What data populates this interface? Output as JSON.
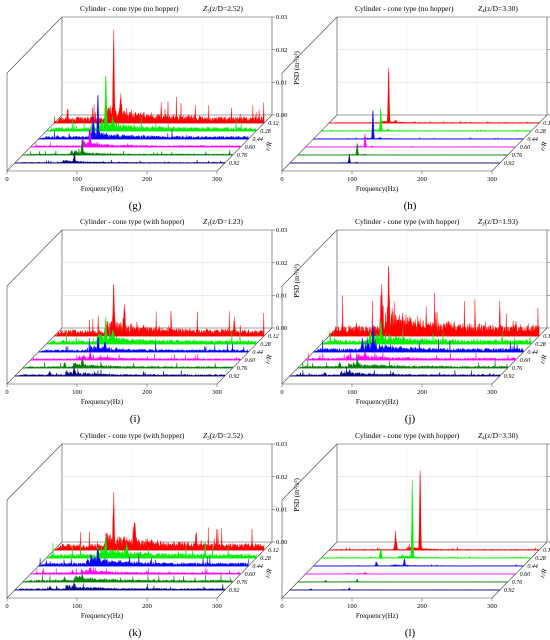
{
  "chart_data": [
    {
      "type": "area",
      "panel_label": "(g)",
      "title": "Cylinder - cone type (no hopper)",
      "z_label": "Z",
      "z_sub": "3",
      "z_ratio": "(z/D=2.52)",
      "xlabel": "Frequency(Hz)",
      "ylabel": "PSD (m²/s³)",
      "depth_label": "r/R",
      "x_ticks": [
        "0",
        "100",
        "200",
        "300"
      ],
      "xlim": [
        0,
        300
      ],
      "y_ticks": [
        "0.00",
        "0.01",
        "0.02",
        "0.03"
      ],
      "ylim": [
        0,
        0.03
      ],
      "depth_ticks": [
        "0.12",
        "0.28",
        "0.44",
        "0.60",
        "0.76",
        "0.92"
      ],
      "series": [
        {
          "name": "0.12",
          "color": "#ff0000",
          "peak_x": 85,
          "peak_y": 0.026,
          "floor": 0.0015,
          "decay": 60,
          "secondary_x": 95,
          "secondary_y": 0.006
        },
        {
          "name": "0.28",
          "color": "#00ee00",
          "peak_x": 85,
          "peak_y": 0.016,
          "floor": 0.0009,
          "decay": 45,
          "secondary_x": 95,
          "secondary_y": 0.003
        },
        {
          "name": "0.44",
          "color": "#0000ff",
          "peak_x": 85,
          "peak_y": 0.012,
          "floor": 0.0007,
          "decay": 40,
          "secondary_x": 78,
          "secondary_y": 0.005
        },
        {
          "name": "0.60",
          "color": "#ff00ff",
          "peak_x": 85,
          "peak_y": 0.006,
          "floor": 0.0004,
          "decay": 35,
          "secondary_x": 75,
          "secondary_y": 0.002
        },
        {
          "name": "0.76",
          "color": "#008000",
          "peak_x": 85,
          "peak_y": 0.004,
          "floor": 0.0003,
          "decay": 30,
          "secondary_x": 70,
          "secondary_y": 0.0015
        },
        {
          "name": "0.92",
          "color": "#000080",
          "peak_x": 85,
          "peak_y": 0.003,
          "floor": 0.0002,
          "decay": 30,
          "secondary_x": 70,
          "secondary_y": 0.001
        }
      ]
    },
    {
      "type": "area",
      "panel_label": "(h)",
      "title": "Cylinder - cone type (no hopper)",
      "z_label": "Z",
      "z_sub": "4",
      "z_ratio": "(z/D=3.30)",
      "xlabel": "Frequency(Hz)",
      "ylabel": "PSD (m²/s³)",
      "depth_label": "r/R",
      "x_ticks": [
        "0",
        "100",
        "200",
        "300"
      ],
      "xlim": [
        0,
        300
      ],
      "y_ticks": [
        "0.0",
        "0.05",
        "0.10",
        "0.15"
      ],
      "ylim": [
        0,
        0.15
      ],
      "depth_ticks": [
        "0.12",
        "0.28",
        "0.44",
        "0.60",
        "0.76",
        "0.92"
      ],
      "series": [
        {
          "name": "0.12",
          "color": "#ff0000",
          "peak_x": 85,
          "peak_y": 0.085,
          "floor": 0.0008,
          "decay": 25,
          "secondary_x": 95,
          "secondary_y": 0.004
        },
        {
          "name": "0.28",
          "color": "#00ee00",
          "peak_x": 85,
          "peak_y": 0.035,
          "floor": 0.0006,
          "decay": 20,
          "secondary_x": 95,
          "secondary_y": 0.002
        },
        {
          "name": "0.44",
          "color": "#0000ff",
          "peak_x": 85,
          "peak_y": 0.045,
          "floor": 0.0005,
          "decay": 20,
          "secondary_x": 95,
          "secondary_y": 0.002
        },
        {
          "name": "0.60",
          "color": "#ff00ff",
          "peak_x": 85,
          "peak_y": 0.02,
          "floor": 0.0004,
          "decay": 20,
          "secondary_x": 95,
          "secondary_y": 0.001
        },
        {
          "name": "0.76",
          "color": "#008000",
          "peak_x": 85,
          "peak_y": 0.018,
          "floor": 0.0003,
          "decay": 20,
          "secondary_x": 95,
          "secondary_y": 0.001
        },
        {
          "name": "0.92",
          "color": "#000080",
          "peak_x": 85,
          "peak_y": 0.012,
          "floor": 0.0002,
          "decay": 20,
          "secondary_x": 95,
          "secondary_y": 0.001
        }
      ]
    },
    {
      "type": "area",
      "panel_label": "(i)",
      "title": "Cylinder - cone type (with hopper)",
      "z_label": "Z",
      "z_sub": "1",
      "z_ratio": "(z/D=1.23)",
      "xlabel": "Frequency(Hz)",
      "ylabel": "PSD (m²/s³)",
      "depth_label": "r/R",
      "x_ticks": [
        "0",
        "100",
        "200",
        "300"
      ],
      "xlim": [
        0,
        300
      ],
      "y_ticks": [
        "0.00",
        "0.01",
        "0.02",
        "0.03"
      ],
      "ylim": [
        0,
        0.03
      ],
      "depth_ticks": [
        "0.12",
        "0.28",
        "0.44",
        "0.60",
        "0.76",
        "0.92"
      ],
      "series": [
        {
          "name": "0.12",
          "color": "#ff0000",
          "peak_x": 85,
          "peak_y": 0.014,
          "floor": 0.0015,
          "decay": 60,
          "secondary_x": 100,
          "secondary_y": 0.006
        },
        {
          "name": "0.28",
          "color": "#00ee00",
          "peak_x": 85,
          "peak_y": 0.006,
          "floor": 0.0009,
          "decay": 45,
          "secondary_x": 95,
          "secondary_y": 0.003
        },
        {
          "name": "0.44",
          "color": "#0000ff",
          "peak_x": 85,
          "peak_y": 0.004,
          "floor": 0.0006,
          "decay": 40,
          "secondary_x": 95,
          "secondary_y": 0.002
        },
        {
          "name": "0.60",
          "color": "#ff00ff",
          "peak_x": 85,
          "peak_y": 0.0015,
          "floor": 0.0004,
          "decay": 40,
          "secondary_x": 70,
          "secondary_y": 0.001
        },
        {
          "name": "0.76",
          "color": "#008000",
          "peak_x": 85,
          "peak_y": 0.002,
          "floor": 0.0004,
          "decay": 40,
          "secondary_x": 60,
          "secondary_y": 0.0015
        },
        {
          "name": "0.92",
          "color": "#000080",
          "peak_x": 85,
          "peak_y": 0.002,
          "floor": 0.0004,
          "decay": 40,
          "secondary_x": 50,
          "secondary_y": 0.0015
        }
      ]
    },
    {
      "type": "area",
      "panel_label": "(j)",
      "title": "Cylinder - cone type (with hopper)",
      "z_label": "Z",
      "z_sub": "2",
      "z_ratio": "(z/D=1.93)",
      "xlabel": "Frequency(Hz)",
      "ylabel": "PSD (m²/s³)",
      "depth_label": "r/R",
      "x_ticks": [
        "0",
        "100",
        "200",
        "300"
      ],
      "xlim": [
        0,
        300
      ],
      "y_ticks": [
        "0.00",
        "0.01",
        "0.02",
        "0.03"
      ],
      "ylim": [
        0,
        0.03
      ],
      "depth_ticks": [
        "0.12",
        "0.28",
        "0.44",
        "0.60",
        "0.76",
        "0.92"
      ],
      "series": [
        {
          "name": "0.12",
          "color": "#ff0000",
          "peak_x": 85,
          "peak_y": 0.016,
          "floor": 0.0025,
          "decay": 60,
          "secondary_x": 75,
          "secondary_y": 0.01
        },
        {
          "name": "0.28",
          "color": "#00ee00",
          "peak_x": 85,
          "peak_y": 0.006,
          "floor": 0.001,
          "decay": 45,
          "secondary_x": 70,
          "secondary_y": 0.004
        },
        {
          "name": "0.44",
          "color": "#0000ff",
          "peak_x": 85,
          "peak_y": 0.006,
          "floor": 0.0009,
          "decay": 40,
          "secondary_x": 70,
          "secondary_y": 0.004
        },
        {
          "name": "0.60",
          "color": "#ff00ff",
          "peak_x": 85,
          "peak_y": 0.0015,
          "floor": 0.0005,
          "decay": 40,
          "secondary_x": 60,
          "secondary_y": 0.001
        },
        {
          "name": "0.76",
          "color": "#008000",
          "peak_x": 85,
          "peak_y": 0.002,
          "floor": 0.0005,
          "decay": 40,
          "secondary_x": 60,
          "secondary_y": 0.0015
        },
        {
          "name": "0.92",
          "color": "#000080",
          "peak_x": 85,
          "peak_y": 0.0015,
          "floor": 0.0004,
          "decay": 40,
          "secondary_x": 50,
          "secondary_y": 0.001
        }
      ]
    },
    {
      "type": "area",
      "panel_label": "(k)",
      "title": "Cylinder - cone type (with hopper)",
      "z_label": "Z",
      "z_sub": "3",
      "z_ratio": "(z/D=2.52)",
      "xlabel": "Frequency(Hz)",
      "ylabel": "PSD (m²/s³)",
      "depth_label": "r/R",
      "x_ticks": [
        "0",
        "100",
        "200",
        "300"
      ],
      "xlim": [
        0,
        300
      ],
      "y_ticks": [
        "0.00",
        "0.01",
        "0.02",
        "0.03"
      ],
      "ylim": [
        0,
        0.03
      ],
      "depth_ticks": [
        "0.12",
        "0.28",
        "0.44",
        "0.60",
        "0.76",
        "0.92"
      ],
      "series": [
        {
          "name": "0.12",
          "color": "#ff0000",
          "peak_x": 85,
          "peak_y": 0.012,
          "floor": 0.0015,
          "decay": 60,
          "secondary_x": 115,
          "secondary_y": 0.007
        },
        {
          "name": "0.28",
          "color": "#00ee00",
          "peak_x": 85,
          "peak_y": 0.005,
          "floor": 0.001,
          "decay": 45,
          "secondary_x": 115,
          "secondary_y": 0.003
        },
        {
          "name": "0.44",
          "color": "#0000ff",
          "peak_x": 85,
          "peak_y": 0.004,
          "floor": 0.0008,
          "decay": 40,
          "secondary_x": 70,
          "secondary_y": 0.002
        },
        {
          "name": "0.60",
          "color": "#ff00ff",
          "peak_x": 85,
          "peak_y": 0.0015,
          "floor": 0.0004,
          "decay": 40,
          "secondary_x": 60,
          "secondary_y": 0.001
        },
        {
          "name": "0.76",
          "color": "#008000",
          "peak_x": 85,
          "peak_y": 0.002,
          "floor": 0.0005,
          "decay": 40,
          "secondary_x": 60,
          "secondary_y": 0.0015
        },
        {
          "name": "0.92",
          "color": "#000080",
          "peak_x": 85,
          "peak_y": 0.0015,
          "floor": 0.0004,
          "decay": 40,
          "secondary_x": 50,
          "secondary_y": 0.001
        }
      ]
    },
    {
      "type": "area",
      "panel_label": "(l)",
      "title": "Cylinder - cone type (with hopper)",
      "z_label": "Z",
      "z_sub": "4",
      "z_ratio": "(z/D=3.30)",
      "xlabel": "Frequency(Hz)",
      "ylabel": "PSD (m²/s³)",
      "depth_label": "r/R",
      "x_ticks": [
        "0",
        "100",
        "200",
        "300"
      ],
      "xlim": [
        0,
        300
      ],
      "y_ticks": [
        "0.0",
        "0.1",
        "0.2",
        "0.3"
      ],
      "ylim": [
        0,
        0.3
      ],
      "depth_ticks": [
        "0.12",
        "0.28",
        "0.44",
        "0.60",
        "0.76",
        "0.92"
      ],
      "series": [
        {
          "name": "0.12",
          "color": "#ff0000",
          "peak_x": 130,
          "peak_y": 0.25,
          "floor": 0.002,
          "decay": 20,
          "secondary_x": 95,
          "secondary_y": 0.06
        },
        {
          "name": "0.28",
          "color": "#00ee00",
          "peak_x": 130,
          "peak_y": 0.24,
          "floor": 0.0015,
          "decay": 15,
          "secondary_x": 85,
          "secondary_y": 0.03
        },
        {
          "name": "0.44",
          "color": "#0000ff",
          "peak_x": 130,
          "peak_y": 0.02,
          "floor": 0.001,
          "decay": 25,
          "secondary_x": 90,
          "secondary_y": 0.015
        },
        {
          "name": "0.60",
          "color": "#ff00ff",
          "peak_x": 85,
          "peak_y": 0.005,
          "floor": 0.0005,
          "decay": 25,
          "secondary_x": 60,
          "secondary_y": 0.003
        },
        {
          "name": "0.76",
          "color": "#008000",
          "peak_x": 85,
          "peak_y": 0.008,
          "floor": 0.0005,
          "decay": 25,
          "secondary_x": 40,
          "secondary_y": 0.006
        },
        {
          "name": "0.92",
          "color": "#000080",
          "peak_x": 85,
          "peak_y": 0.006,
          "floor": 0.0004,
          "decay": 25,
          "secondary_x": 30,
          "secondary_y": 0.004
        }
      ]
    }
  ]
}
